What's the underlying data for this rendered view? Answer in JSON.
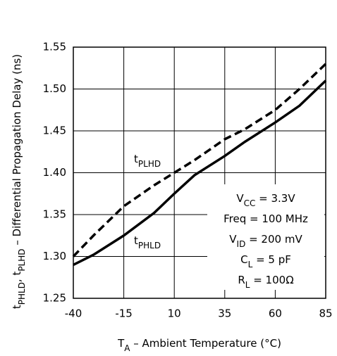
{
  "chart_data": {
    "type": "line",
    "x_label": [
      {
        "text": "T"
      },
      {
        "text": "A",
        "sub": true
      },
      {
        "text": " – Ambient Temperature (°C)"
      }
    ],
    "y_label": [
      {
        "text": "t"
      },
      {
        "text": "PHLD",
        "sub": true
      },
      {
        "text": ", t"
      },
      {
        "text": "PLHD",
        "sub": true
      },
      {
        "text": " – Differential Propagation Delay (ns)"
      }
    ],
    "x": [
      -40,
      -30,
      -15,
      0,
      10,
      20,
      35,
      45,
      60,
      72,
      85
    ],
    "series": [
      {
        "name": [
          {
            "text": "t"
          },
          {
            "text": "PLHD",
            "sub": true
          }
        ],
        "color": "#000000",
        "dash": true,
        "values": [
          1.3,
          1.325,
          1.36,
          1.385,
          1.4,
          1.415,
          1.44,
          1.452,
          1.475,
          1.5,
          1.53
        ]
      },
      {
        "name": [
          {
            "text": "t"
          },
          {
            "text": "PHLD",
            "sub": true
          }
        ],
        "color": "#000000",
        "dash": false,
        "values": [
          1.29,
          1.302,
          1.325,
          1.352,
          1.375,
          1.397,
          1.42,
          1.437,
          1.46,
          1.48,
          1.51
        ]
      }
    ],
    "conditions": [
      [
        {
          "text": "V"
        },
        {
          "text": "CC",
          "sub": true
        },
        {
          "text": " = 3.3V"
        }
      ],
      [
        {
          "text": "Freq = 100 MHz"
        }
      ],
      [
        {
          "text": "V"
        },
        {
          "text": "ID",
          "sub": true
        },
        {
          "text": " = 200 mV"
        }
      ],
      [
        {
          "text": "C"
        },
        {
          "text": "L",
          "sub": true
        },
        {
          "text": " = 5 pF"
        }
      ],
      [
        {
          "text": "R"
        },
        {
          "text": "L",
          "sub": true
        },
        {
          "text": " = 100Ω"
        }
      ]
    ],
    "xlim": [
      -40,
      85
    ],
    "xticks": [
      -40,
      -15,
      10,
      35,
      60,
      85
    ],
    "ylim": [
      1.25,
      1.55
    ],
    "yticks": [
      1.25,
      {
        "value": 1.3,
        "label": "1.30"
      },
      1.35,
      {
        "value": 1.4,
        "label": "1.40"
      },
      1.45,
      {
        "value": 1.5,
        "label": "1.50"
      },
      1.55
    ],
    "grid": true
  }
}
